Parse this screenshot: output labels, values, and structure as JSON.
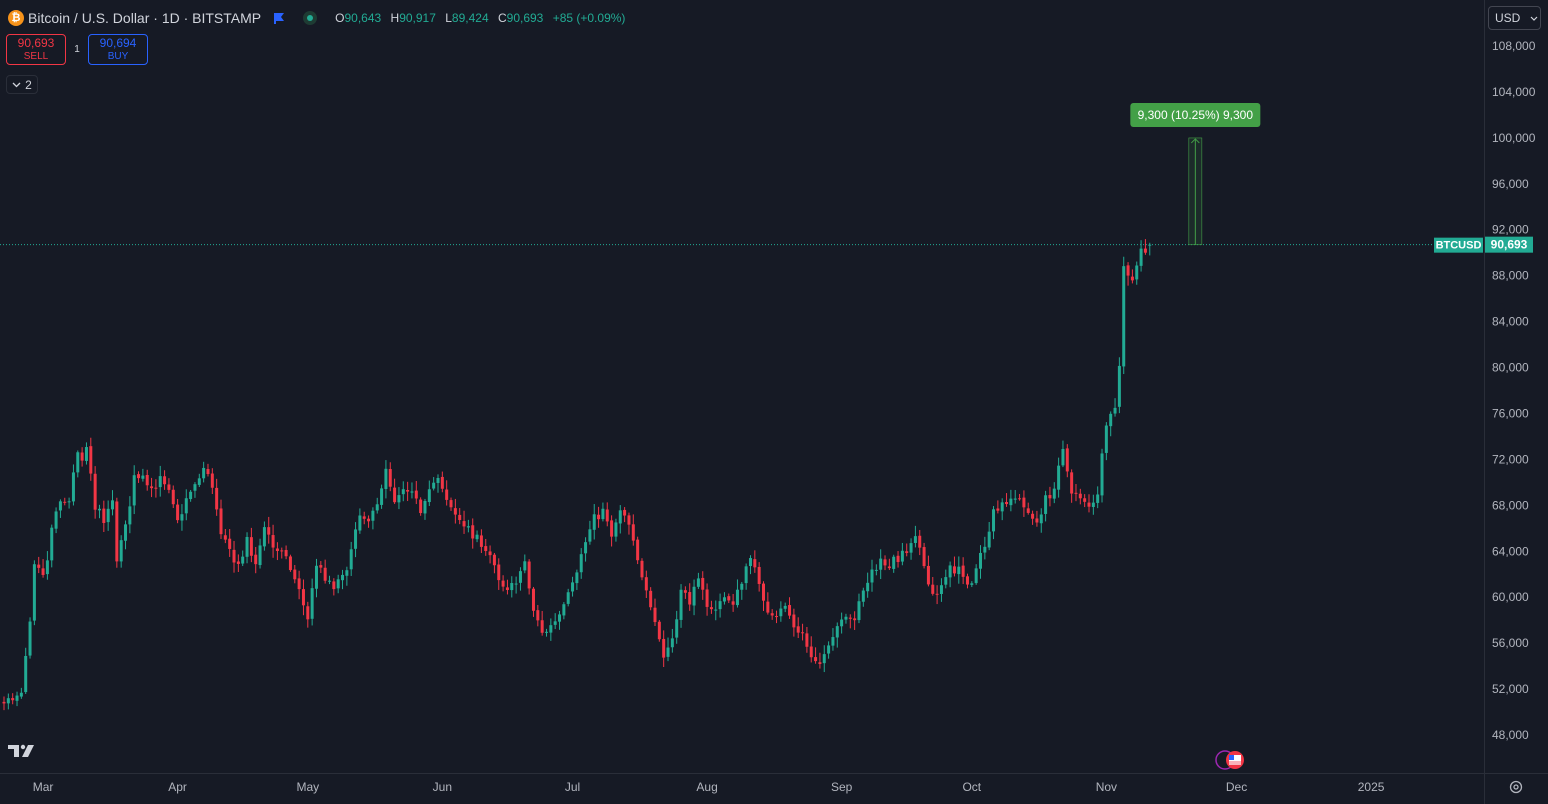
{
  "header": {
    "symbol_title": "Bitcoin / U.S. Dollar · 1D · BITSTAMP",
    "coin_glyph": "₿",
    "ohlc": [
      {
        "key": "O",
        "value": "90,643"
      },
      {
        "key": "H",
        "value": "90,917"
      },
      {
        "key": "L",
        "value": "89,424"
      },
      {
        "key": "C",
        "value": "90,693"
      }
    ],
    "change": "+85 (+0.09%)"
  },
  "trade": {
    "sell_price": "90,693",
    "sell_label": "SELL",
    "spread": "1",
    "buy_price": "90,694",
    "buy_label": "BUY"
  },
  "indicators_toggle": {
    "count": "2"
  },
  "currency_select": {
    "value": "USD"
  },
  "colors": {
    "background": "#161A25",
    "up": "#22AB94",
    "down": "#F23645",
    "measure_label": "#43A047",
    "grid_text": "#B2B5BE"
  },
  "icons": [
    "bitcoin-icon",
    "flag-icon",
    "live-status-icon",
    "chevron-down-icon",
    "tradingview-logo",
    "gear-icon",
    "events-icon"
  ],
  "chart_data": {
    "type": "candlestick",
    "ylim": [
      46000,
      109000
    ],
    "y_ticks": [
      "48,000",
      "52,000",
      "56,000",
      "60,000",
      "64,000",
      "68,000",
      "72,000",
      "76,000",
      "80,000",
      "84,000",
      "88,000",
      "92,000",
      "96,000",
      "100,000",
      "104,000",
      "108,000"
    ],
    "x_ticks": [
      {
        "label": "Mar",
        "day": 9
      },
      {
        "label": "Apr",
        "day": 40
      },
      {
        "label": "May",
        "day": 70
      },
      {
        "label": "Jun",
        "day": 101
      },
      {
        "label": "Jul",
        "day": 131
      },
      {
        "label": "Aug",
        "day": 162
      },
      {
        "label": "Sep",
        "day": 193
      },
      {
        "label": "Oct",
        "day": 223
      },
      {
        "label": "Nov",
        "day": 254
      },
      {
        "label": "Dec",
        "day": 284
      },
      {
        "label": "2025",
        "day": 315
      }
    ],
    "anchor_closes": [
      [
        0,
        51200
      ],
      [
        2,
        50800
      ],
      [
        4,
        51500
      ],
      [
        6,
        57500
      ],
      [
        7,
        62500
      ],
      [
        9,
        62000
      ],
      [
        10,
        63000
      ],
      [
        11,
        66000
      ],
      [
        13,
        68200
      ],
      [
        15,
        68500
      ],
      [
        17,
        72500
      ],
      [
        18,
        71500
      ],
      [
        19,
        73000
      ],
      [
        21,
        68000
      ],
      [
        23,
        66500
      ],
      [
        25,
        68200
      ],
      [
        26,
        63500
      ],
      [
        28,
        66000
      ],
      [
        30,
        70500
      ],
      [
        32,
        70800
      ],
      [
        34,
        69500
      ],
      [
        36,
        70200
      ],
      [
        38,
        69000
      ],
      [
        40,
        66500
      ],
      [
        42,
        68500
      ],
      [
        44,
        69600
      ],
      [
        46,
        71200
      ],
      [
        48,
        69800
      ],
      [
        50,
        65200
      ],
      [
        52,
        64000
      ],
      [
        54,
        62800
      ],
      [
        56,
        64800
      ],
      [
        58,
        62600
      ],
      [
        60,
        66400
      ],
      [
        62,
        64400
      ],
      [
        64,
        63800
      ],
      [
        66,
        62500
      ],
      [
        68,
        60500
      ],
      [
        70,
        58200
      ],
      [
        72,
        63000
      ],
      [
        74,
        61400
      ],
      [
        76,
        60800
      ],
      [
        78,
        61600
      ],
      [
        80,
        64000
      ],
      [
        82,
        67000
      ],
      [
        84,
        66200
      ],
      [
        86,
        68500
      ],
      [
        88,
        70900
      ],
      [
        90,
        68000
      ],
      [
        92,
        69200
      ],
      [
        94,
        68800
      ],
      [
        96,
        67600
      ],
      [
        98,
        69800
      ],
      [
        100,
        70200
      ],
      [
        102,
        68200
      ],
      [
        104,
        67200
      ],
      [
        106,
        66500
      ],
      [
        108,
        65200
      ],
      [
        110,
        64800
      ],
      [
        112,
        63700
      ],
      [
        114,
        61200
      ],
      [
        116,
        60300
      ],
      [
        118,
        61600
      ],
      [
        120,
        62800
      ],
      [
        122,
        58800
      ],
      [
        124,
        56800
      ],
      [
        126,
        57500
      ],
      [
        128,
        58600
      ],
      [
        130,
        60800
      ],
      [
        132,
        62500
      ],
      [
        134,
        64800
      ],
      [
        136,
        66800
      ],
      [
        138,
        67500
      ],
      [
        140,
        65200
      ],
      [
        142,
        67400
      ],
      [
        144,
        66200
      ],
      [
        146,
        63000
      ],
      [
        148,
        61000
      ],
      [
        150,
        58000
      ],
      [
        152,
        54800
      ],
      [
        154,
        56500
      ],
      [
        156,
        60500
      ],
      [
        158,
        59800
      ],
      [
        160,
        61200
      ],
      [
        162,
        59500
      ],
      [
        164,
        58800
      ],
      [
        166,
        60300
      ],
      [
        168,
        59200
      ],
      [
        170,
        61500
      ],
      [
        172,
        63800
      ],
      [
        174,
        60800
      ],
      [
        176,
        59000
      ],
      [
        178,
        58500
      ],
      [
        180,
        59200
      ],
      [
        182,
        57500
      ],
      [
        184,
        56800
      ],
      [
        186,
        54600
      ],
      [
        188,
        53800
      ],
      [
        190,
        56200
      ],
      [
        192,
        57600
      ],
      [
        194,
        58700
      ],
      [
        196,
        58200
      ],
      [
        198,
        60400
      ],
      [
        200,
        62300
      ],
      [
        202,
        63200
      ],
      [
        204,
        62800
      ],
      [
        206,
        63400
      ],
      [
        208,
        63900
      ],
      [
        210,
        65000
      ],
      [
        212,
        62800
      ],
      [
        214,
        60300
      ],
      [
        216,
        60800
      ],
      [
        218,
        62400
      ],
      [
        220,
        62500
      ],
      [
        222,
        60700
      ],
      [
        224,
        62500
      ],
      [
        226,
        64800
      ],
      [
        228,
        67500
      ],
      [
        230,
        68400
      ],
      [
        232,
        68200
      ],
      [
        234,
        68800
      ],
      [
        236,
        67000
      ],
      [
        238,
        66600
      ],
      [
        240,
        68500
      ],
      [
        242,
        69500
      ],
      [
        244,
        72600
      ],
      [
        246,
        69400
      ],
      [
        248,
        68400
      ],
      [
        250,
        67800
      ],
      [
        252,
        69200
      ],
      [
        254,
        75400
      ],
      [
        255,
        76400
      ],
      [
        256,
        76400
      ],
      [
        257,
        80400
      ],
      [
        258,
        88700
      ],
      [
        260,
        87800
      ],
      [
        262,
        90200
      ],
      [
        264,
        90700
      ]
    ],
    "last_price_label": "90,693",
    "symbol_tag": "BTCUSD",
    "measure": {
      "from_value": 90693,
      "to_value": 99993,
      "label": "9,300 (10.25%) 9,300"
    }
  }
}
